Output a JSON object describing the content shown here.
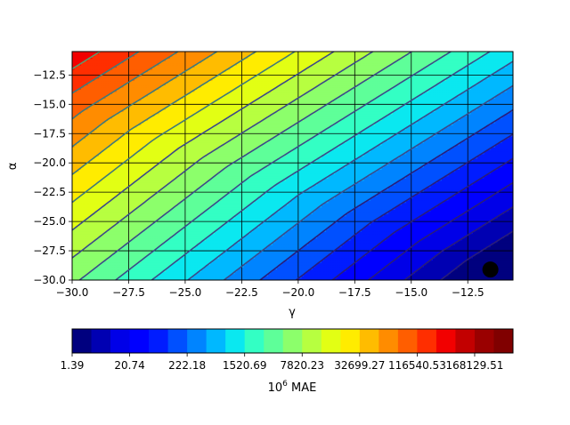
{
  "chart_data": {
    "type": "contourf",
    "xlabel": "γ",
    "ylabel": "α",
    "xlim": [
      -30,
      -10.5
    ],
    "ylim": [
      -30,
      -10.5
    ],
    "x_ticks": [
      -30.0,
      -27.5,
      -25.0,
      -22.5,
      -20.0,
      -17.5,
      -15.0,
      -12.5
    ],
    "x_tick_labels": [
      "−30.0",
      "−27.5",
      "−25.0",
      "−22.5",
      "−20.0",
      "−17.5",
      "−15.0",
      "−12.5"
    ],
    "y_ticks": [
      -30.0,
      -27.5,
      -25.0,
      -22.5,
      -20.0,
      -17.5,
      -15.0,
      -12.5
    ],
    "y_tick_labels": [
      "−30.0",
      "−27.5",
      "−25.0",
      "−22.5",
      "−20.0",
      "−17.5",
      "−15.0",
      "−12.5"
    ],
    "grid": true,
    "minimum_marker": {
      "x": -11.5,
      "y": -29.1,
      "color": "#000000"
    },
    "colorbar": {
      "orientation": "horizontal",
      "label_base": "10",
      "label_exp": "6",
      "label_rest": " MAE",
      "tick_labels": [
        "1.39",
        "20.74",
        "222.18",
        "1520.69",
        "7820.23",
        "32699.27",
        "116540.53",
        "168129.51"
      ],
      "tick_levels": [
        0,
        3,
        6,
        9,
        12,
        15,
        18,
        21
      ],
      "levels": 23,
      "colors": [
        "#00007f",
        "#0000b2",
        "#0000e8",
        "#0000ff",
        "#001cff",
        "#0050ff",
        "#0084ff",
        "#00b8ff",
        "#0ae8f0",
        "#33ffc4",
        "#5eff99",
        "#8cff6b",
        "#b7ff40",
        "#e2ff14",
        "#ffec00",
        "#ffbc00",
        "#ff8c00",
        "#ff5e00",
        "#ff2e00",
        "#f20000",
        "#c20000",
        "#9a0000",
        "#800000"
      ]
    }
  }
}
